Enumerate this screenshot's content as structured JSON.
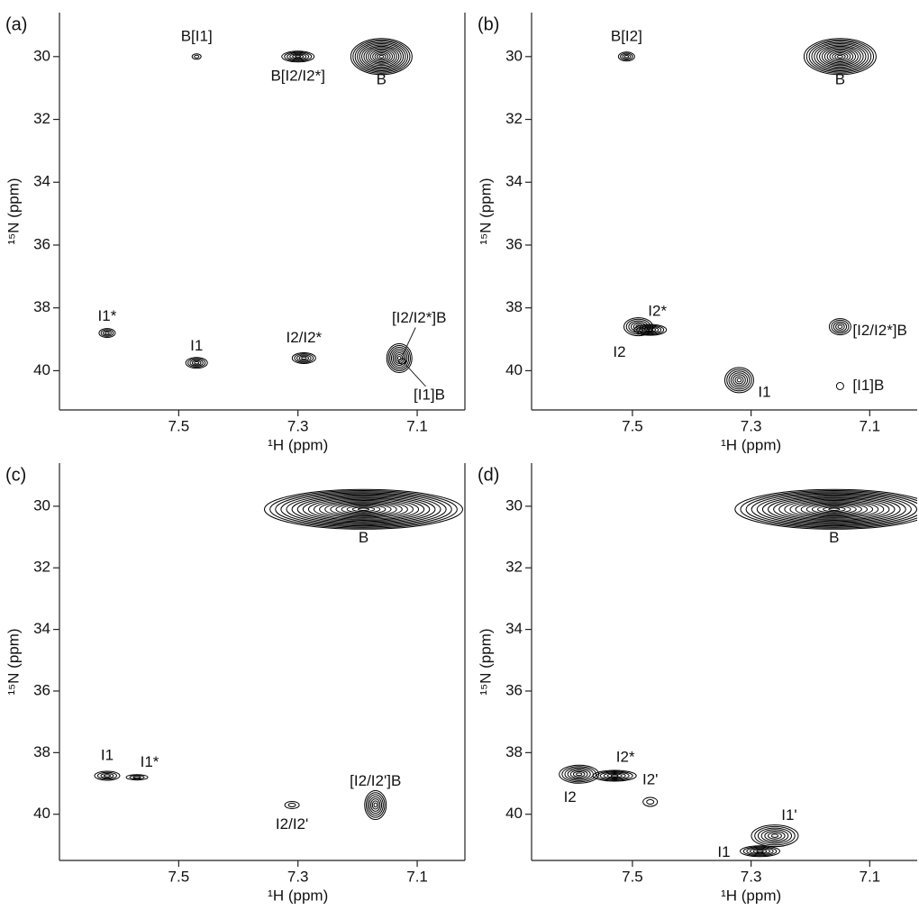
{
  "chart_data": [
    {
      "type": "contour",
      "panel_label": "(a)",
      "xlabel": "¹H (ppm)",
      "ylabel": "¹⁵N (ppm)",
      "xlim": [
        7.7,
        7.02
      ],
      "ylim": [
        28.6,
        41.25
      ],
      "xticks": [
        7.5,
        7.3,
        7.1
      ],
      "yticks": [
        30,
        32,
        34,
        36,
        38,
        40
      ],
      "peaks": [
        {
          "label": "B[I1]",
          "x": 7.47,
          "y": 30.0
        },
        {
          "label": "B[I2/I2*]",
          "x": 7.3,
          "y": 30.0
        },
        {
          "label": "B",
          "x": 7.16,
          "y": 30.0
        },
        {
          "label": "I1*",
          "x": 7.62,
          "y": 38.8
        },
        {
          "label": "I1",
          "x": 7.47,
          "y": 39.75
        },
        {
          "label": "I2/I2*",
          "x": 7.29,
          "y": 39.6
        },
        {
          "label": "[I2/I2*]B",
          "x": 7.13,
          "y": 39.6
        },
        {
          "label": "[I1]B",
          "x": 7.125,
          "y": 39.7
        }
      ]
    },
    {
      "type": "contour",
      "panel_label": "(b)",
      "xlabel": "¹H (ppm)",
      "ylabel": "¹⁵N (ppm)",
      "xlim": [
        7.67,
        7.02
      ],
      "ylim": [
        28.6,
        41.25
      ],
      "xticks": [
        7.5,
        7.3,
        7.1
      ],
      "yticks": [
        30,
        32,
        34,
        36,
        38,
        40
      ],
      "peaks": [
        {
          "label": "B[I2]",
          "x": 7.51,
          "y": 30.0
        },
        {
          "label": "B",
          "x": 7.15,
          "y": 30.0
        },
        {
          "label": "I2",
          "x": 7.49,
          "y": 38.6
        },
        {
          "label": "I2*",
          "x": 7.47,
          "y": 38.7
        },
        {
          "label": "I1",
          "x": 7.32,
          "y": 40.3
        },
        {
          "label": "[I2/I2*]B",
          "x": 7.15,
          "y": 38.6
        },
        {
          "label": "[I1]B",
          "x": 7.15,
          "y": 40.49
        }
      ]
    },
    {
      "type": "contour",
      "panel_label": "(c)",
      "xlabel": "¹H (ppm)",
      "ylabel": "¹⁵N (ppm)",
      "xlim": [
        7.7,
        7.02
      ],
      "ylim": [
        28.6,
        41.5
      ],
      "xticks": [
        7.5,
        7.3,
        7.1
      ],
      "yticks": [
        30,
        32,
        34,
        36,
        38,
        40
      ],
      "peaks": [
        {
          "label": "B",
          "x": 7.19,
          "y": 30.1
        },
        {
          "label": "I1",
          "x": 7.62,
          "y": 38.75
        },
        {
          "label": "I1*",
          "x": 7.57,
          "y": 38.8
        },
        {
          "label": "I2/I2'",
          "x": 7.31,
          "y": 39.7
        },
        {
          "label": "[I2/I2']B",
          "x": 7.17,
          "y": 39.7
        }
      ]
    },
    {
      "type": "contour",
      "panel_label": "(d)",
      "xlabel": "¹H (ppm)",
      "ylabel": "¹⁵N (ppm)",
      "xlim": [
        7.67,
        7.02
      ],
      "ylim": [
        28.6,
        41.5
      ],
      "xticks": [
        7.5,
        7.3,
        7.1
      ],
      "yticks": [
        30,
        32,
        34,
        36,
        38,
        40
      ],
      "peaks": [
        {
          "label": "B",
          "x": 7.16,
          "y": 30.1
        },
        {
          "label": "I2",
          "x": 7.59,
          "y": 38.7
        },
        {
          "label": "I2*",
          "x": 7.53,
          "y": 38.75
        },
        {
          "label": "I2'",
          "x": 7.47,
          "y": 39.6
        },
        {
          "label": "I1",
          "x": 7.285,
          "y": 41.2
        },
        {
          "label": "I1'",
          "x": 7.26,
          "y": 40.7
        }
      ]
    }
  ]
}
